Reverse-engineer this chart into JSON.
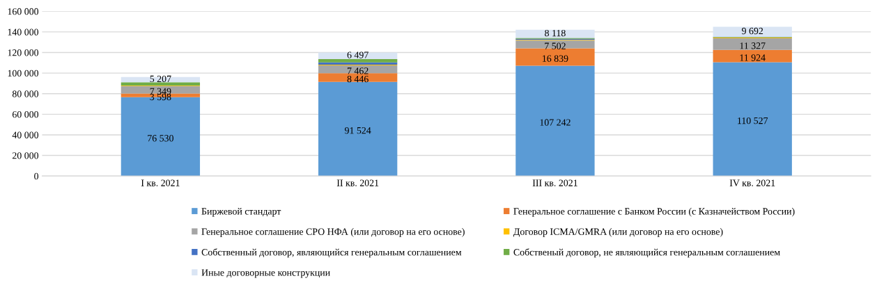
{
  "chart_data": {
    "type": "bar",
    "stacked": true,
    "categories": [
      "I кв. 2021",
      "II кв. 2021",
      "III кв. 2021",
      "IV кв. 2021"
    ],
    "series": [
      {
        "name": "Биржевой стандарт",
        "color": "#5b9bd5",
        "values": [
          76530,
          91524,
          107242,
          110527
        ],
        "value_labels": [
          "76 530",
          "91 524",
          "107 242",
          "110 527"
        ]
      },
      {
        "name": "Генеральное соглашение с Банком России (с Казначейством России)",
        "color": "#ed7d31",
        "values": [
          3598,
          8446,
          16839,
          11924
        ],
        "value_labels": [
          "3 598",
          "8 446",
          "16 839",
          "11 924"
        ]
      },
      {
        "name": "Генеральное соглашение СРО НФА (или договор на его основе)",
        "color": "#a5a5a5",
        "values": [
          7349,
          7462,
          7502,
          11327
        ],
        "value_labels": [
          "7 349",
          "7 462",
          "7 502",
          "11 327"
        ]
      },
      {
        "name": "Договор ICMA/GMRA (или договор на его основе)",
        "color": "#ffc000",
        "values": [
          500,
          700,
          700,
          700
        ]
      },
      {
        "name": "Собственный договор, являющийся генеральным соглашением",
        "color": "#4472c4",
        "values": [
          0,
          2200,
          1000,
          300
        ]
      },
      {
        "name": "Собственый договор, не являющийся генеральным соглашением",
        "color": "#70ad47",
        "values": [
          3000,
          3200,
          700,
          500
        ]
      },
      {
        "name": "Иные договорные конструкции",
        "color": "#dae5f4",
        "values": [
          5207,
          6497,
          8118,
          9692
        ],
        "value_labels": [
          "5 207",
          "6 497",
          "8 118",
          "9 692"
        ]
      }
    ],
    "ylim": [
      0,
      160000
    ],
    "yticks": [
      {
        "value": 0,
        "label": "0"
      },
      {
        "value": 20000,
        "label": "20 000"
      },
      {
        "value": 40000,
        "label": "40 000"
      },
      {
        "value": 60000,
        "label": "60 000"
      },
      {
        "value": 80000,
        "label": "80 000"
      },
      {
        "value": 100000,
        "label": "100 000"
      },
      {
        "value": 120000,
        "label": "120 000"
      },
      {
        "value": 140000,
        "label": "140 000"
      },
      {
        "value": 160000,
        "label": "160 000"
      }
    ],
    "grid": "y",
    "legend": "bottom"
  }
}
